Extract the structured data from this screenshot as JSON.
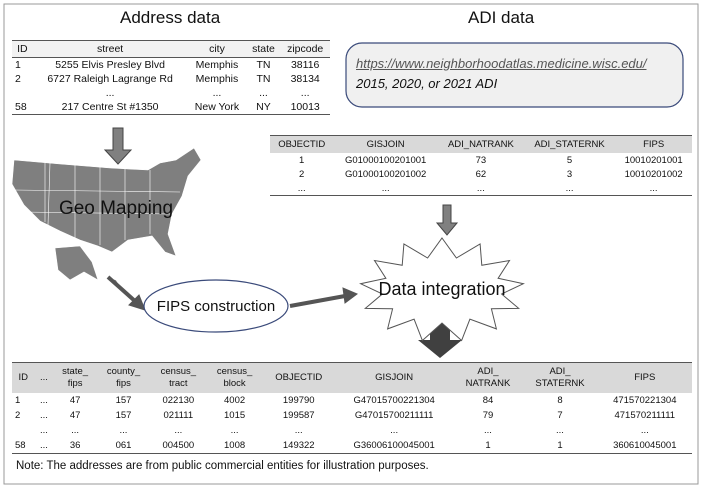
{
  "address_data": {
    "title": "Address data",
    "table": {
      "header": [
        "ID",
        "street",
        "city",
        "state",
        "zipcode"
      ],
      "rows": [
        [
          "1",
          "5255 Elvis Presley Blvd",
          "Memphis",
          "TN",
          "38116"
        ],
        [
          "2",
          "6727 Raleigh Lagrange Rd",
          "Memphis",
          "TN",
          "38134"
        ],
        [
          null,
          "...",
          "...",
          "...",
          "..."
        ],
        [
          "58",
          "217 Centre St #1350",
          "New York",
          "NY",
          "10013"
        ]
      ]
    }
  },
  "adi_data": {
    "title": "ADI data",
    "source": {
      "url": "https://www.neighborhoodatlas.medicine.wisc.edu/",
      "years": "2015, 2020, or 2021 ADI"
    },
    "table": {
      "header": [
        "OBJECTID",
        "GISJOIN",
        "ADI_NATRANK",
        "ADI_STATERNK",
        "FIPS"
      ],
      "rows": [
        [
          "1",
          "G01000100201001",
          "73",
          "5",
          "10010201001"
        ],
        [
          "2",
          "G01000100201002",
          "62",
          "3",
          "10010201002"
        ],
        [
          "...",
          "...",
          "...",
          "...",
          "..."
        ]
      ]
    }
  },
  "steps": {
    "geo_mapping": "Geo Mapping",
    "fips_construction": "FIPS construction",
    "data_integration": "Data integration"
  },
  "result_table": {
    "header": [
      "ID",
      "...",
      "state_\nfips",
      "county_\nfips",
      "census_\ntract",
      "census_\nblock",
      "OBJECTID",
      "GISJOIN",
      "ADI_\nNATRANK",
      "ADI_\nSTATERNK",
      "FIPS"
    ],
    "rows": [
      [
        "1",
        "...",
        "47",
        "157",
        "022130",
        "4002",
        "199790",
        "G47015700221304",
        "84",
        "8",
        "471570221304"
      ],
      [
        "2",
        "...",
        "47",
        "157",
        "021111",
        "1015",
        "199587",
        "G47015700211111",
        "79",
        "7",
        "471570211111"
      ],
      [
        null,
        "...",
        "...",
        "...",
        "...",
        "...",
        "...",
        "...",
        "...",
        "...",
        "..."
      ],
      [
        "58",
        "...",
        "36",
        "061",
        "004500",
        "1008",
        "149322",
        "G36006100045001",
        "1",
        "1",
        "360610045001"
      ]
    ]
  },
  "note": "Note: The addresses are from public commercial entities for illustration purposes."
}
